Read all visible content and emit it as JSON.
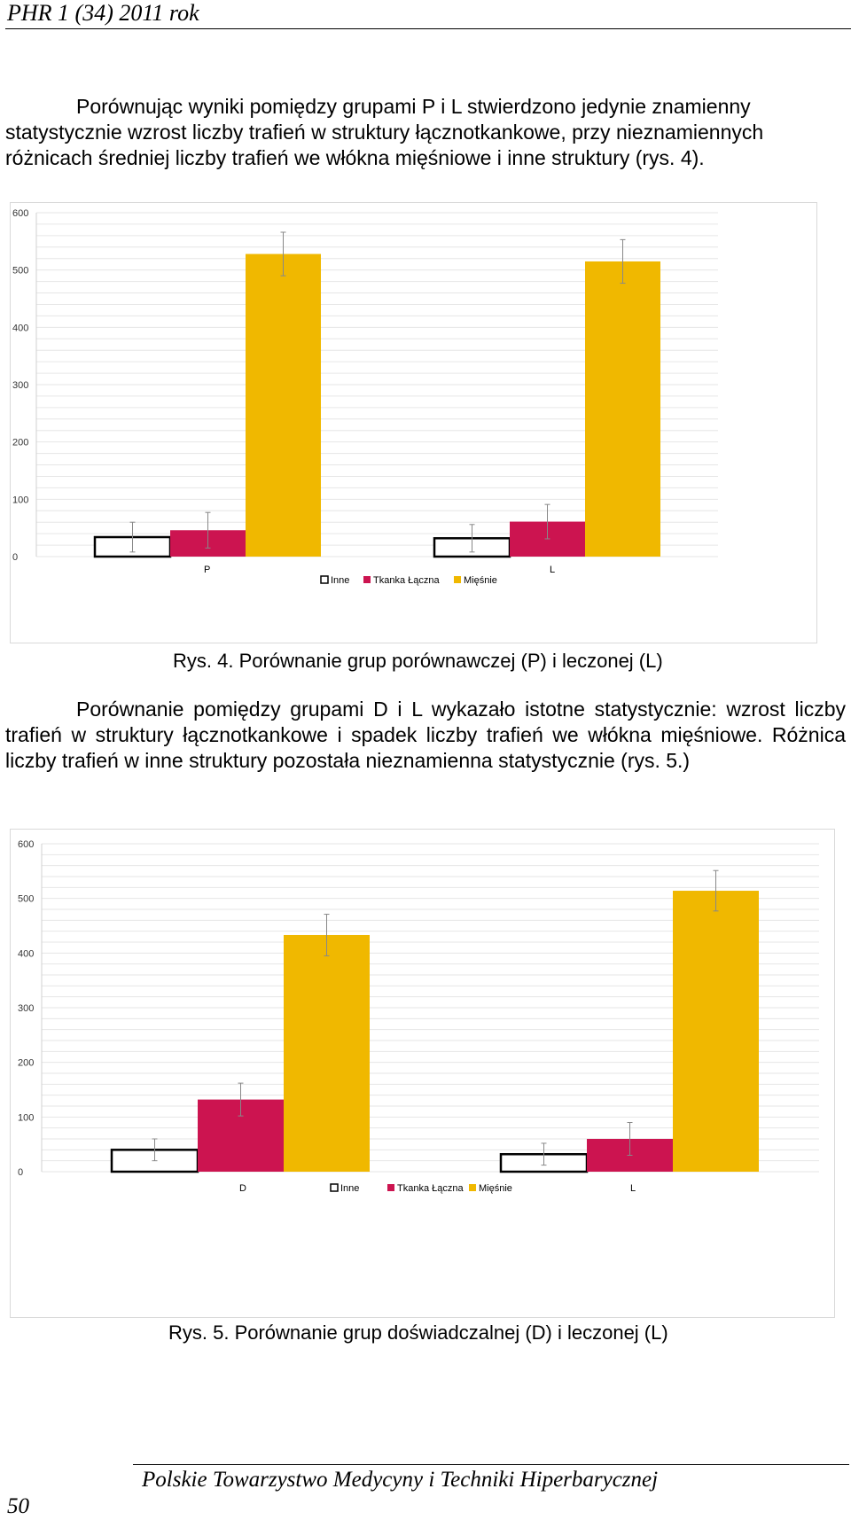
{
  "header": {
    "text": "PHR 1 (34) 2011 rok"
  },
  "paragraph1": "Porównując wyniki pomiędzy grupami P i L stwierdzono jedynie znamienny statystycznie wzrost liczby trafień w struktury łącznotkankowe, przy nieznamiennych różnicach średniej liczby trafień we włókna mięśniowe i inne struktury (rys. 4).",
  "caption1": "Rys. 4. Porównanie grup porównawczej (P) i leczonej (L)",
  "paragraph2": "Porównanie pomiędzy grupami D i L wykazało istotne statystycznie: wzrost liczby trafień w struktury łącznotkankowe i spadek liczby trafień we włókna mięśniowe. Różnica liczby trafień w inne struktury pozostała nieznamienna statystycznie (rys. 5.)",
  "caption2": "Rys. 5. Porównanie grup doświadczalnej (D) i leczonej (L)",
  "footer": {
    "text": "Polskie Towarzystwo Medycyny i Techniki Hiperbarycznej",
    "page_number": "50"
  },
  "colors": {
    "inne": "#ffffff",
    "tkanka": "#cc1450",
    "miesnie": "#f0b800",
    "grid": "#e6e6e6"
  },
  "chart_data": [
    {
      "type": "bar",
      "categories": [
        "P",
        "L"
      ],
      "series": [
        {
          "name": "Inne",
          "values": [
            34,
            32
          ],
          "errors": [
            26,
            24
          ]
        },
        {
          "name": "Tkanka Łączna",
          "values": [
            46,
            61
          ],
          "errors": [
            31,
            30
          ]
        },
        {
          "name": "Mięśnie",
          "values": [
            528,
            515
          ],
          "errors": [
            38,
            38
          ]
        }
      ],
      "ylim": [
        0,
        600
      ],
      "yticks": [
        0,
        100,
        200,
        300,
        400,
        500,
        600
      ],
      "legend_position": "bottom",
      "grid": true
    },
    {
      "type": "bar",
      "categories": [
        "D",
        "L"
      ],
      "series": [
        {
          "name": "Inne",
          "values": [
            40,
            32
          ],
          "errors": [
            20,
            20
          ]
        },
        {
          "name": "Tkanka Łączna",
          "values": [
            132,
            60
          ],
          "errors": [
            30,
            30
          ]
        },
        {
          "name": "Mięśnie",
          "values": [
            433,
            514
          ],
          "errors": [
            38,
            37
          ]
        }
      ],
      "ylim": [
        0,
        600
      ],
      "yticks": [
        0,
        100,
        200,
        300,
        400,
        500,
        600
      ],
      "legend_position": "bottom",
      "grid": true
    }
  ]
}
